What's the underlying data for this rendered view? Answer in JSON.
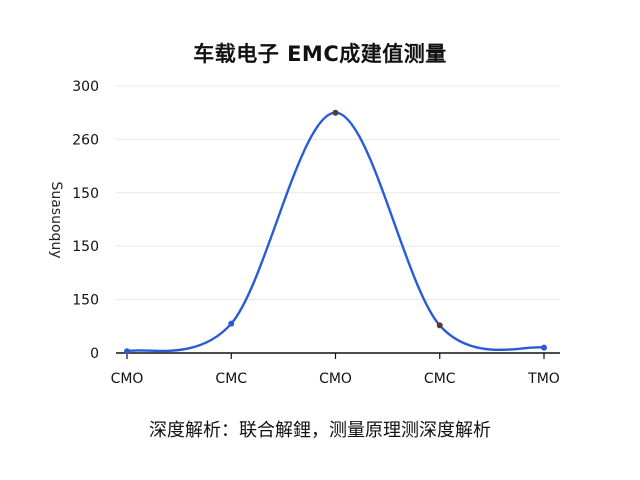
{
  "title": "车载电子 EMC成建值测量",
  "caption": "深度解析：联合解鋰，测量原理测深度解析",
  "chart_data": {
    "type": "line",
    "title": "车载电子 EMC成建值测量",
    "xlabel": "",
    "ylabel": "Suasuoquy",
    "categories": [
      "CMO",
      "CMC",
      "CMO",
      "CMC",
      "TMO"
    ],
    "y_tick_labels": [
      "0",
      "150",
      "150",
      "150",
      "260",
      "300"
    ],
    "ylim": [
      0,
      300
    ],
    "grid": true,
    "legend": "none",
    "series": [
      {
        "color": "#2a5bd7",
        "points": [
          {
            "x": 0,
            "y": 2
          },
          {
            "x": 1,
            "y": 33
          },
          {
            "x": 2,
            "y": 270
          },
          {
            "x": 3,
            "y": 31
          },
          {
            "x": 4,
            "y": 6
          }
        ]
      }
    ],
    "marker_colors": [
      "#2a5bd7",
      "#2a5bd7",
      "#5a3a2a",
      "#5a3a2a",
      "#2a5bd7"
    ],
    "axis_color": "#111111",
    "grid_color": "#e8e8e8"
  }
}
